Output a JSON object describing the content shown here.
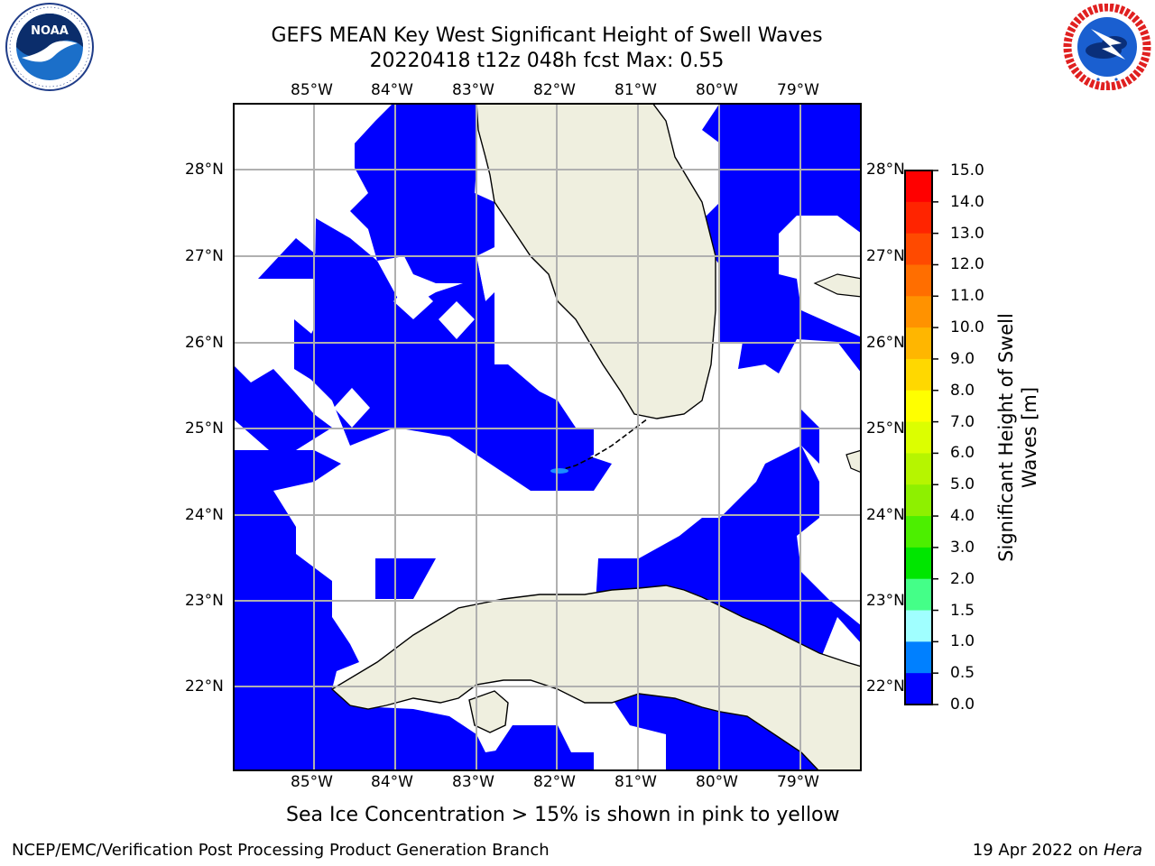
{
  "header": {
    "title_line1": "GEFS MEAN Key West Significant Height of Swell Waves",
    "title_line2": "20220418 t12z 048h fcst   Max: 0.55"
  },
  "logos": {
    "left": {
      "icon": "noaa-logo-icon",
      "text": "NOAA",
      "ring_text": "NATIONAL OCEANIC AND ATMOSPHERIC ADMINISTRATION · U.S. DEPARTMENT OF COMMERCE"
    },
    "right": {
      "icon": "national-weather-service-logo-icon",
      "ring_text": "NATIONAL WEATHER SERVICE"
    }
  },
  "map": {
    "lon_labels": [
      "85°W",
      "84°W",
      "83°W",
      "82°W",
      "81°W",
      "80°W",
      "79°W"
    ],
    "lat_labels": [
      "28°N",
      "27°N",
      "26°N",
      "25°N",
      "24°N",
      "23°N",
      "22°N"
    ],
    "colors": {
      "ocean_swell": "#0000ff",
      "no_data": "#ffffff",
      "land": "#efefdf",
      "grid": "#b0b0b0",
      "max_patch": "#1a8cff"
    }
  },
  "colorbar": {
    "title_line1": "Significant Height of Swell",
    "title_line2": "Waves [m]",
    "tick_labels": [
      "15.0",
      "14.0",
      "13.0",
      "12.0",
      "11.0",
      "10.0",
      "9.0",
      "8.0",
      "7.0",
      "6.0",
      "5.0",
      "4.0",
      "3.0",
      "2.0",
      "1.5",
      "1.0",
      "0.5",
      "0.0"
    ],
    "colors": [
      "#ff0000",
      "#ff2400",
      "#ff4a00",
      "#ff6e00",
      "#ff9200",
      "#ffb600",
      "#ffd800",
      "#ffff00",
      "#dcff00",
      "#b6f500",
      "#8ef000",
      "#4cef00",
      "#00e600",
      "#44ff88",
      "#a0ffff",
      "#50ffff",
      "#00ffff",
      "#0080ff",
      "#0000ff"
    ]
  },
  "notes": {
    "sea_ice": "Sea Ice Concentration > 15% is shown in pink to yellow"
  },
  "footer": {
    "left": "NCEP/EMC/Verification Post Processing Product Generation Branch",
    "right_date": "19 Apr 2022 on ",
    "right_host": "Hera"
  }
}
